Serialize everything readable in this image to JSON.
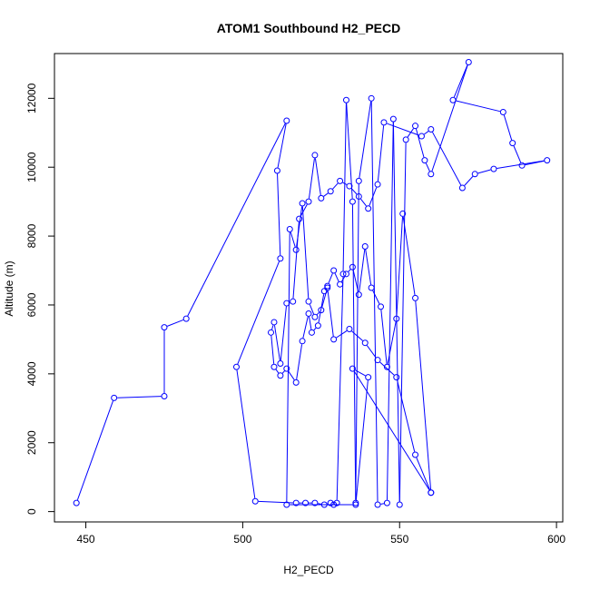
{
  "chart_data": {
    "type": "scatter",
    "title": "ATOM1 Southbound H2_PECD",
    "xlabel": "H2_PECD",
    "ylabel": "Altitude (m)",
    "xlim": [
      440,
      602
    ],
    "ylim": [
      -300,
      13300
    ],
    "xticks": [
      450,
      500,
      550,
      600
    ],
    "yticks": [
      0,
      2000,
      4000,
      6000,
      8000,
      10000,
      12000
    ],
    "grid": false,
    "legend": "none",
    "connect_points": true,
    "color": "#0000ff",
    "series": [
      {
        "x": [
          447,
          459,
          475,
          475,
          482,
          514,
          511,
          512,
          498,
          504,
          517,
          520,
          523,
          526,
          528,
          529,
          530,
          532,
          533,
          535,
          536,
          537,
          541,
          543,
          546,
          548,
          550,
          552,
          555,
          558,
          560,
          572,
          567,
          583,
          586,
          589,
          597,
          580,
          574,
          570,
          560,
          557,
          545,
          543,
          540,
          537,
          534,
          531,
          528,
          525,
          523,
          521,
          518,
          516,
          514,
          512,
          510,
          509,
          510,
          512,
          514,
          517,
          519,
          521,
          522,
          524,
          526,
          527,
          529,
          531,
          533,
          535,
          537,
          539,
          541,
          544,
          546,
          549,
          551,
          555,
          560,
          555,
          549,
          543,
          539,
          534,
          529,
          527,
          525,
          523,
          521,
          519,
          517,
          515,
          514,
          536,
          540,
          535,
          560
        ],
        "y": [
          250,
          3300,
          3350,
          5350,
          5600,
          11350,
          9900,
          7350,
          4200,
          300,
          250,
          250,
          250,
          200,
          250,
          200,
          250,
          6900,
          11950,
          9000,
          250,
          9600,
          12000,
          200,
          250,
          11400,
          200,
          10800,
          11200,
          10200,
          9800,
          13050,
          11950,
          11600,
          10700,
          10050,
          10200,
          9950,
          9800,
          9400,
          11100,
          10900,
          11300,
          9500,
          8800,
          9150,
          9450,
          9600,
          9300,
          9100,
          10350,
          9000,
          8500,
          6100,
          6050,
          4300,
          5500,
          5200,
          4200,
          3950,
          4150,
          3750,
          4950,
          5750,
          5200,
          5400,
          6400,
          6550,
          7000,
          6600,
          6900,
          7100,
          6300,
          7700,
          6500,
          5950,
          4200,
          5600,
          8650,
          6200,
          550,
          1650,
          3900,
          4400,
          4900,
          5300,
          5000,
          6500,
          5850,
          5650,
          6100,
          8950,
          7600,
          8200,
          200,
          200,
          3900,
          4150,
          550
        ]
      }
    ]
  }
}
